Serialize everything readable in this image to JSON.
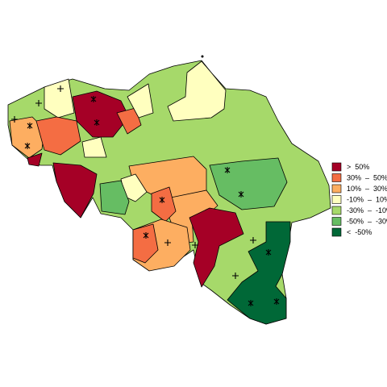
{
  "legend": {
    "items": [
      {
        "label": ">  50%",
        "color": "#a50026"
      },
      {
        "label": "30%  –  50%",
        "color": "#f46d43"
      },
      {
        "label": "10%  –  30%",
        "color": "#fdae61"
      },
      {
        "label": "-10%  –  10%",
        "color": "#ffffbf"
      },
      {
        "label": "-30%  –  -10%",
        "color": "#a6d96a"
      },
      {
        "label": "-50%  –  -30%",
        "color": "#66bd63"
      },
      {
        "label": "<  -50%",
        "color": "#006837"
      }
    ]
  }
}
